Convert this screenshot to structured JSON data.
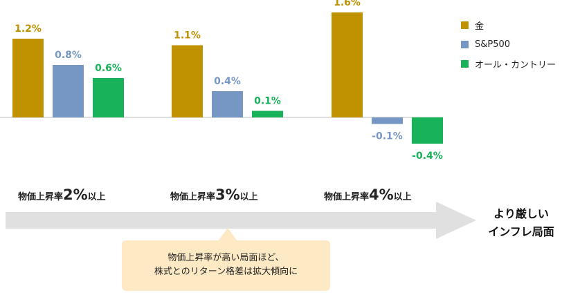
{
  "chart_data": {
    "type": "bar",
    "categories": [
      "物価上昇率2%以上",
      "物価上昇率3%以上",
      "物価上昇率4%以上"
    ],
    "series": [
      {
        "name": "金",
        "color": "#c09100",
        "values": [
          1.2,
          1.1,
          1.6
        ],
        "labels": [
          "1.2%",
          "1.1%",
          "1.6%"
        ]
      },
      {
        "name": "S&P500",
        "color": "#7697c4",
        "values": [
          0.8,
          0.4,
          -0.1
        ],
        "labels": [
          "0.8%",
          "0.4%",
          "-0.1%"
        ]
      },
      {
        "name": "オール・カントリー",
        "color": "#18b25a",
        "values": [
          0.6,
          0.1,
          -0.4
        ],
        "labels": [
          "0.6%",
          "0.1%",
          "-0.4%"
        ]
      }
    ],
    "legend_position": "top-right",
    "grid": false
  },
  "conditions": [
    {
      "prefix": "物価上昇率",
      "value": "2%",
      "suffix": "以上"
    },
    {
      "prefix": "物価上昇率",
      "value": "3%",
      "suffix": "以上"
    },
    {
      "prefix": "物価上昇率",
      "value": "4%",
      "suffix": "以上"
    }
  ],
  "arrow_label": {
    "line1": "より厳しい",
    "line2": "インフレ局面"
  },
  "note": {
    "line1": "物価上昇率が高い局面ほど、",
    "line2": "株式とのリターン格差は拡大傾向に"
  },
  "colors": {
    "arrow": "#e0e0e0",
    "note_bg": "#fde9c4",
    "axis": "#bbbbbb"
  }
}
